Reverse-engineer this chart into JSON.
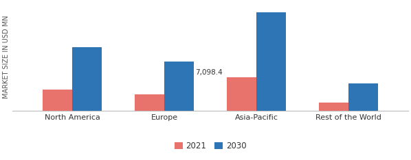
{
  "categories": [
    "North America",
    "Europe",
    "Asia-Pacific",
    "Rest of the World"
  ],
  "values_2021": [
    4500,
    3500,
    7098.4,
    1800
  ],
  "values_2030": [
    13500,
    10500,
    21000,
    5800
  ],
  "color_2021": "#E8736C",
  "color_2030": "#2E75B6",
  "ylabel": "MARKET SIZE IN USD MN",
  "legend_labels": [
    "2021",
    "2030"
  ],
  "annotation_text": "7,098.4",
  "annotation_region_idx": 2,
  "bar_width": 0.32,
  "ylim": [
    0,
    23000
  ],
  "background_color": "#FFFFFF",
  "axis_color": "#BBBBBB",
  "tick_label_fontsize": 8.0,
  "ylabel_fontsize": 7.0,
  "legend_fontsize": 8.5
}
